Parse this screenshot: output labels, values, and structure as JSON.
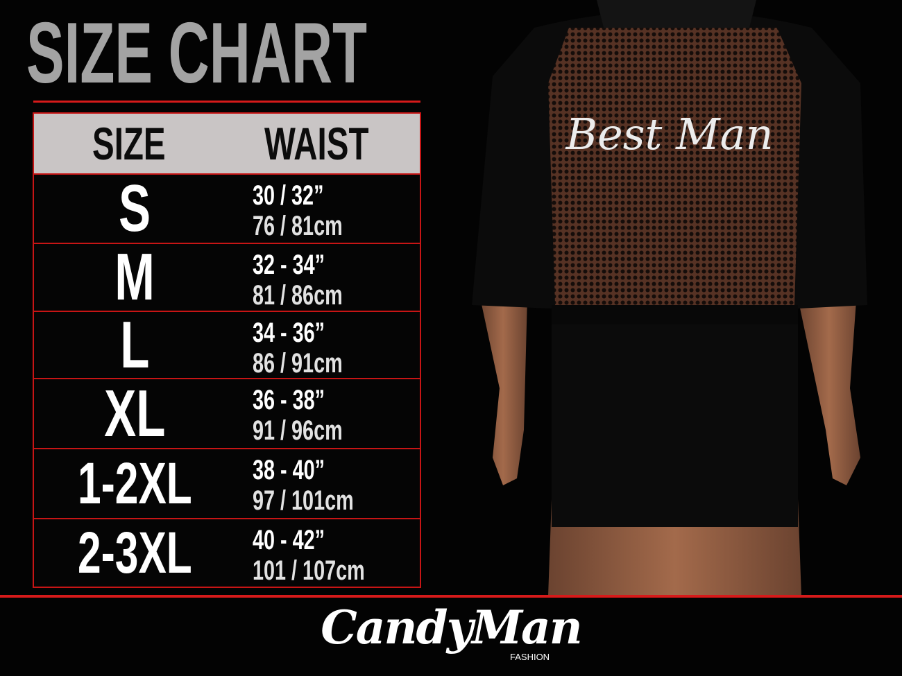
{
  "title": "SIZE CHART",
  "table": {
    "headers": {
      "size": "SIZE",
      "waist": "WAIST"
    },
    "rows": [
      {
        "size": "S",
        "inches": "30 / 32”",
        "cm": "76 / 81cm"
      },
      {
        "size": "M",
        "inches": "32 - 34”",
        "cm": "81 / 86cm"
      },
      {
        "size": "L",
        "inches": "34 - 36”",
        "cm": "86 / 91cm"
      },
      {
        "size": "XL",
        "inches": "36 - 38”",
        "cm": "91 / 96cm"
      },
      {
        "size": "1-2XL",
        "inches": "38 - 40”",
        "cm": "97 / 101cm"
      },
      {
        "size": "2-3XL",
        "inches": "40 - 42”",
        "cm": "101 / 107cm"
      }
    ]
  },
  "product_print": "Best Man",
  "brand": {
    "name": "CandyMan",
    "sub": "FASHION"
  },
  "colors": {
    "accent": "#d61a1a",
    "header_bg": "#c9c5c5",
    "title": "#a3a3a3",
    "background": "#030303"
  }
}
